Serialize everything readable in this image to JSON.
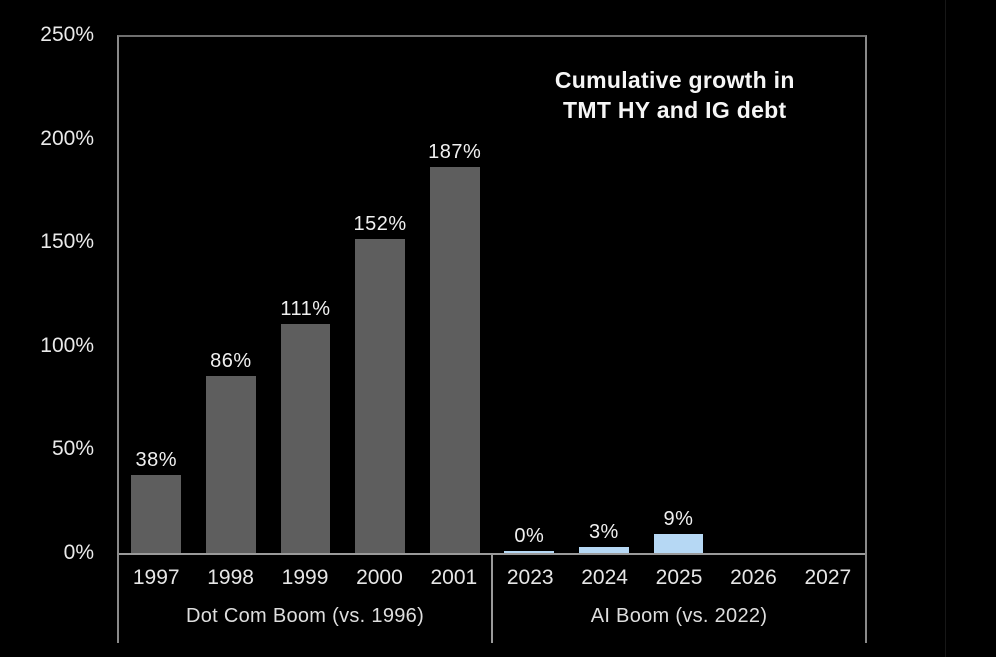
{
  "chart_data": {
    "type": "bar",
    "title_line1": "Cumulative growth in",
    "title_line2": "TMT HY and IG debt",
    "ylim": [
      0,
      250
    ],
    "yticks": [
      0,
      50,
      100,
      150,
      200,
      250
    ],
    "ytick_labels": [
      "0%",
      "50%",
      "100%",
      "150%",
      "200%",
      "250%"
    ],
    "grid": false,
    "legend": "none",
    "background_color": "#000000",
    "text_color": "#eaeaea",
    "groups": [
      {
        "label": "Dot Com Boom (vs. 1996)",
        "color": "#5e5e5e",
        "categories": [
          "1997",
          "1998",
          "1999",
          "2000",
          "2001"
        ],
        "values": [
          38,
          86,
          111,
          152,
          187
        ],
        "data_labels": [
          "38%",
          "86%",
          "111%",
          "152%",
          "187%"
        ]
      },
      {
        "label": "AI Boom (vs. 2022)",
        "color": "#b6d8f4",
        "categories": [
          "2023",
          "2024",
          "2025",
          "2026",
          "2027"
        ],
        "values": [
          0,
          3,
          9,
          null,
          null
        ],
        "data_labels": [
          "0%",
          "3%",
          "9%",
          null,
          null
        ]
      }
    ]
  }
}
